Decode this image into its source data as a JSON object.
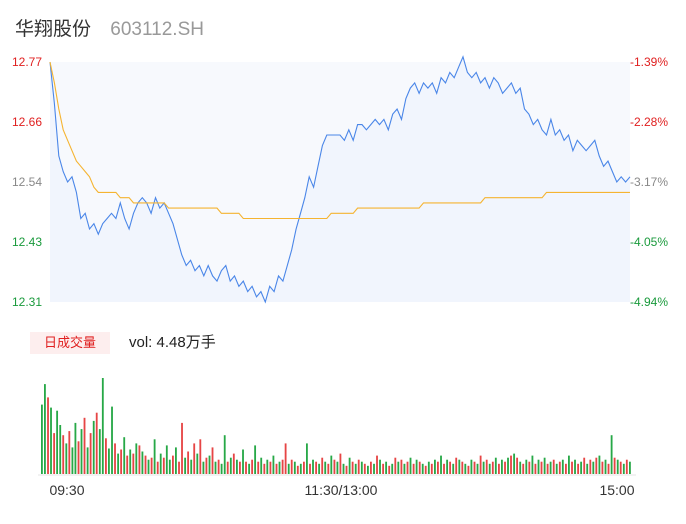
{
  "header": {
    "name": "华翔股份",
    "code": "603112.SH"
  },
  "chart_data": [
    {
      "type": "line",
      "title": "",
      "y_left_ticks": [
        "12.77",
        "12.66",
        "12.54",
        "12.43",
        "12.31"
      ],
      "y_right_ticks": [
        "-1.39%",
        "-2.28%",
        "-3.17%",
        "-4.05%",
        "-4.94%"
      ],
      "ylim": [
        12.31,
        12.77
      ],
      "series": [
        {
          "name": "price",
          "color": "#4a86e8",
          "values": [
            12.77,
            12.69,
            12.59,
            12.56,
            12.54,
            12.55,
            12.52,
            12.47,
            12.48,
            12.45,
            12.46,
            12.44,
            12.46,
            12.47,
            12.48,
            12.47,
            12.5,
            12.47,
            12.45,
            12.48,
            12.5,
            12.51,
            12.5,
            12.48,
            12.51,
            12.49,
            12.5,
            12.48,
            12.46,
            12.43,
            12.4,
            12.38,
            12.39,
            12.37,
            12.38,
            12.36,
            12.38,
            12.36,
            12.35,
            12.37,
            12.38,
            12.35,
            12.36,
            12.34,
            12.35,
            12.33,
            12.34,
            12.32,
            12.33,
            12.31,
            12.34,
            12.33,
            12.36,
            12.35,
            12.38,
            12.41,
            12.45,
            12.48,
            12.51,
            12.55,
            12.53,
            12.57,
            12.61,
            12.63,
            12.63,
            12.63,
            12.63,
            12.62,
            12.64,
            12.62,
            12.65,
            12.65,
            12.64,
            12.65,
            12.66,
            12.65,
            12.66,
            12.64,
            12.67,
            12.68,
            12.66,
            12.7,
            12.72,
            12.73,
            12.71,
            12.73,
            12.72,
            12.73,
            12.71,
            12.74,
            12.73,
            12.75,
            12.74,
            12.76,
            12.78,
            12.75,
            12.74,
            12.75,
            12.73,
            12.74,
            12.72,
            12.74,
            12.73,
            12.71,
            12.72,
            12.73,
            12.71,
            12.72,
            12.68,
            12.67,
            12.65,
            12.66,
            12.64,
            12.63,
            12.66,
            12.63,
            12.64,
            12.62,
            12.63,
            12.6,
            12.62,
            12.61,
            12.6,
            12.61,
            12.62,
            12.59,
            12.57,
            12.58,
            12.56,
            12.54,
            12.55,
            12.54,
            12.55
          ]
        },
        {
          "name": "avg",
          "color": "#f5b431",
          "values": [
            12.77,
            12.73,
            12.68,
            12.64,
            12.62,
            12.6,
            12.58,
            12.57,
            12.56,
            12.55,
            12.53,
            12.52,
            12.52,
            12.52,
            12.52,
            12.52,
            12.51,
            12.51,
            12.51,
            12.5,
            12.5,
            12.5,
            12.5,
            12.5,
            12.5,
            12.5,
            12.5,
            12.49,
            12.49,
            12.49,
            12.49,
            12.49,
            12.49,
            12.49,
            12.49,
            12.49,
            12.49,
            12.49,
            12.49,
            12.48,
            12.48,
            12.48,
            12.48,
            12.48,
            12.47,
            12.47,
            12.47,
            12.47,
            12.47,
            12.47,
            12.47,
            12.47,
            12.47,
            12.47,
            12.47,
            12.47,
            12.47,
            12.47,
            12.47,
            12.47,
            12.47,
            12.47,
            12.47,
            12.47,
            12.48,
            12.48,
            12.48,
            12.48,
            12.48,
            12.48,
            12.49,
            12.49,
            12.49,
            12.49,
            12.49,
            12.49,
            12.49,
            12.49,
            12.49,
            12.49,
            12.49,
            12.49,
            12.49,
            12.49,
            12.49,
            12.5,
            12.5,
            12.5,
            12.5,
            12.5,
            12.5,
            12.5,
            12.5,
            12.5,
            12.5,
            12.5,
            12.5,
            12.5,
            12.5,
            12.51,
            12.51,
            12.51,
            12.51,
            12.51,
            12.51,
            12.51,
            12.51,
            12.51,
            12.51,
            12.51,
            12.51,
            12.51,
            12.51,
            12.52,
            12.52,
            12.52,
            12.52,
            12.52,
            12.52,
            12.52,
            12.52,
            12.52,
            12.52,
            12.52,
            12.52,
            12.52,
            12.52,
            12.52,
            12.52,
            12.52,
            12.52,
            12.52,
            12.52
          ]
        }
      ]
    },
    {
      "type": "bar",
      "title": "",
      "tag": "日成交量",
      "summary": "vol: 4.48万手",
      "x_ticks": [
        "09:30",
        "11:30/13:00",
        "15:00"
      ],
      "colors": {
        "up": "#e64545",
        "down": "#27a847",
        "flat": "#f4a6a6"
      },
      "volumes": [
        68,
        88,
        75,
        65,
        40,
        62,
        48,
        38,
        30,
        42,
        26,
        50,
        32,
        44,
        55,
        26,
        40,
        52,
        60,
        44,
        94,
        35,
        25,
        66,
        30,
        20,
        24,
        36,
        18,
        24,
        20,
        30,
        28,
        22,
        18,
        14,
        16,
        34,
        12,
        20,
        16,
        28,
        14,
        18,
        26,
        12,
        50,
        16,
        22,
        14,
        30,
        20,
        34,
        12,
        16,
        18,
        26,
        12,
        14,
        10,
        38,
        12,
        16,
        20,
        14,
        12,
        24,
        12,
        10,
        14,
        28,
        12,
        16,
        10,
        14,
        12,
        18,
        10,
        12,
        14,
        30,
        10,
        14,
        12,
        8,
        10,
        12,
        30,
        10,
        14,
        12,
        10,
        16,
        12,
        10,
        18,
        14,
        12,
        20,
        10,
        8,
        16,
        12,
        10,
        14,
        12,
        10,
        8,
        12,
        10,
        18,
        14,
        10,
        12,
        8,
        10,
        16,
        12,
        14,
        10,
        12,
        16,
        10,
        14,
        12,
        10,
        8,
        12,
        10,
        14,
        12,
        18,
        10,
        14,
        12,
        10,
        16,
        14,
        12,
        10,
        8,
        14,
        12,
        10,
        18,
        12,
        14,
        10,
        12,
        16,
        10,
        14,
        12,
        16,
        18,
        20,
        16,
        12,
        10,
        14,
        12,
        18,
        10,
        14,
        12,
        16,
        10,
        12,
        14,
        10,
        12,
        14,
        10,
        18,
        12,
        14,
        10,
        12,
        16,
        10,
        14,
        12,
        16,
        18,
        12,
        14,
        10,
        38,
        16,
        14,
        12,
        10,
        14,
        12
      ],
      "directions": [
        "d",
        "d",
        "u",
        "d",
        "u",
        "d",
        "d",
        "u",
        "d",
        "u",
        "d",
        "d",
        "u",
        "d",
        "u",
        "d",
        "u",
        "d",
        "u",
        "d",
        "d",
        "u",
        "d",
        "d",
        "u",
        "d",
        "u",
        "d",
        "u",
        "d",
        "u",
        "d",
        "u",
        "d",
        "u",
        "d",
        "u",
        "d",
        "u",
        "d",
        "u",
        "d",
        "d",
        "u",
        "d",
        "u",
        "u",
        "d",
        "u",
        "d",
        "u",
        "d",
        "u",
        "d",
        "u",
        "d",
        "u",
        "d",
        "u",
        "d",
        "d",
        "u",
        "d",
        "u",
        "d",
        "u",
        "d",
        "u",
        "d",
        "u",
        "d",
        "u",
        "d",
        "u",
        "d",
        "u",
        "d",
        "u",
        "d",
        "u",
        "u",
        "d",
        "u",
        "d",
        "u",
        "d",
        "u",
        "d",
        "u",
        "d",
        "u",
        "d",
        "u",
        "d",
        "u",
        "d",
        "u",
        "d",
        "u",
        "d",
        "u",
        "d",
        "u",
        "d",
        "u",
        "d",
        "u",
        "d",
        "u",
        "d",
        "u",
        "d",
        "u",
        "d",
        "u",
        "d",
        "u",
        "d",
        "u",
        "d",
        "u",
        "d",
        "u",
        "d",
        "u",
        "d",
        "u",
        "d",
        "u",
        "d",
        "u",
        "d",
        "u",
        "d",
        "u",
        "d",
        "u",
        "d",
        "u",
        "d",
        "u",
        "d",
        "u",
        "d",
        "u",
        "d",
        "u",
        "d",
        "u",
        "d",
        "u",
        "d",
        "u",
        "d",
        "u",
        "d",
        "u",
        "d",
        "u",
        "d",
        "u",
        "d",
        "u",
        "d",
        "u",
        "d",
        "u",
        "d",
        "u",
        "d",
        "u",
        "d",
        "u",
        "d",
        "u",
        "d",
        "u",
        "d",
        "u",
        "d",
        "u",
        "d",
        "u",
        "d",
        "u",
        "d",
        "u",
        "d",
        "u",
        "d",
        "u",
        "d",
        "u",
        "d",
        "u",
        "f"
      ]
    }
  ]
}
